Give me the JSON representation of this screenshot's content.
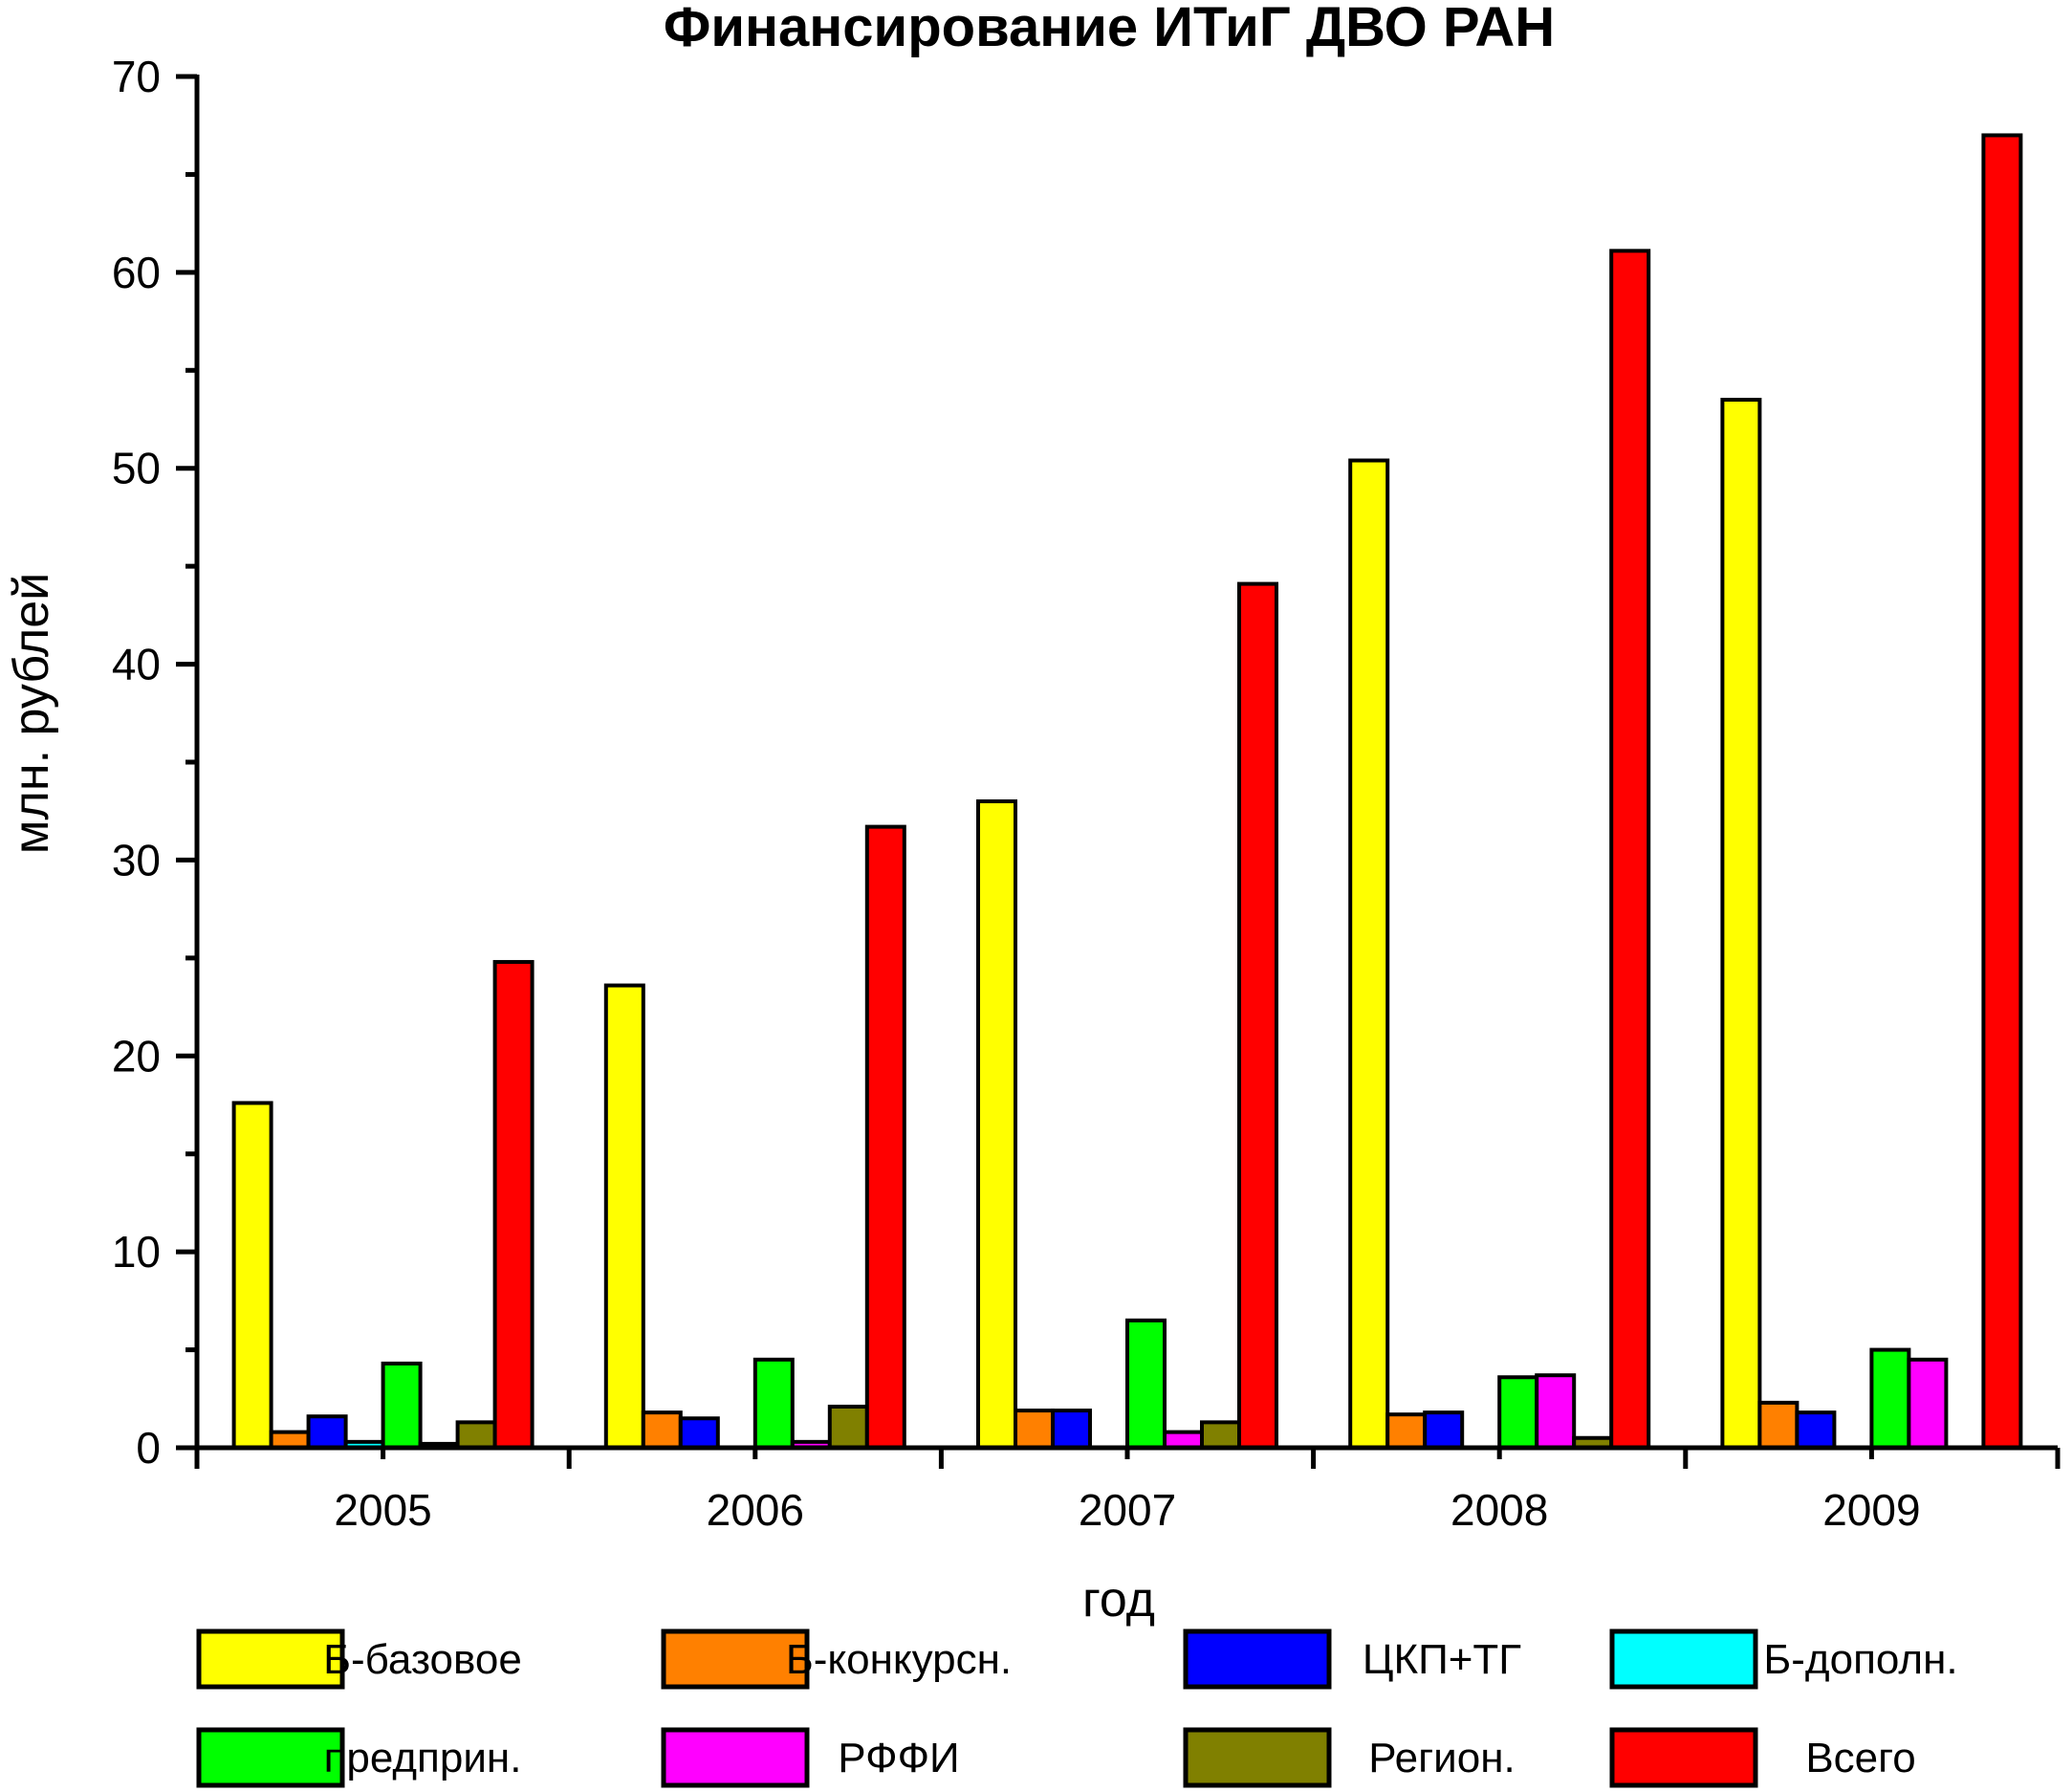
{
  "chart_data": {
    "type": "bar",
    "title": "Финансирование ИТиГ ДВО РАН",
    "xlabel": "год",
    "ylabel": "млн. рублей",
    "ylim": [
      0,
      70
    ],
    "yticks": [
      "0",
      "10",
      "20",
      "30",
      "40",
      "50",
      "60",
      "70"
    ],
    "categories": [
      "2005",
      "2006",
      "2007",
      "2008",
      "2009"
    ],
    "grid": false,
    "legend_position": "bottom",
    "series": [
      {
        "name": "Б-базовое",
        "color": "#ffff00",
        "values": [
          17.6,
          23.6,
          33.0,
          50.4,
          53.5
        ]
      },
      {
        "name": "Б-конкурсн.",
        "color": "#ff8000",
        "values": [
          0.8,
          1.8,
          1.9,
          1.7,
          2.3
        ]
      },
      {
        "name": "ЦКП+ТГ",
        "color": "#0000ff",
        "values": [
          1.6,
          1.5,
          1.9,
          1.8,
          1.8
        ]
      },
      {
        "name": "Б-дополн.",
        "color": "#00ffff",
        "values": [
          0.3,
          0.0,
          0.0,
          0.0,
          0.0
        ]
      },
      {
        "name": "предприн.",
        "color": "#00ff00",
        "values": [
          4.3,
          4.5,
          6.5,
          3.6,
          5.0
        ]
      },
      {
        "name": "РФФИ",
        "color": "#ff00ff",
        "values": [
          0.2,
          0.3,
          0.8,
          3.7,
          4.5
        ]
      },
      {
        "name": "Регион.",
        "color": "#808000",
        "values": [
          1.3,
          2.1,
          1.3,
          0.5,
          0.0
        ]
      },
      {
        "name": "Всего",
        "color": "#ff0000",
        "values": [
          24.8,
          31.7,
          44.1,
          61.1,
          67.0
        ]
      }
    ]
  }
}
